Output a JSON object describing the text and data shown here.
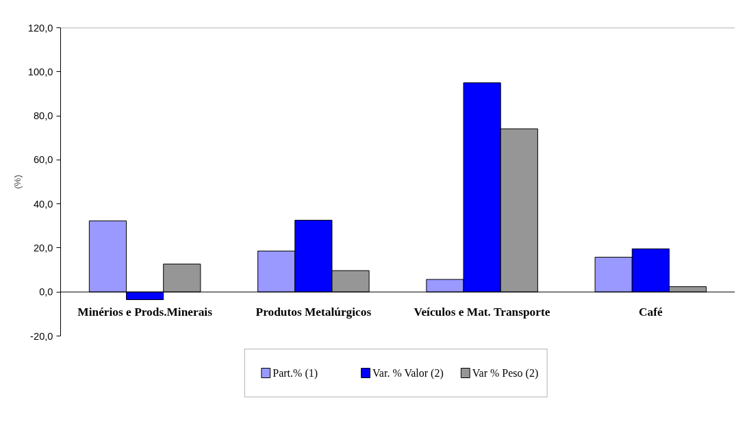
{
  "chart_data": {
    "type": "bar",
    "ylabel": "(%)",
    "categories": [
      "Minérios e Prods.Minerais",
      "Produtos Metalúrgicos",
      "Veículos e Mat. Transporte",
      "Café"
    ],
    "series": [
      {
        "name": "Part.% (1)",
        "color": "#9999ff",
        "values": [
          32.3,
          18.6,
          5.7,
          15.8
        ]
      },
      {
        "name": "Var. % Valor (2)",
        "color": "#0000ff",
        "values": [
          -3.5,
          32.6,
          95.0,
          19.6
        ]
      },
      {
        "name": "Var % Peso (2)",
        "color": "#969696",
        "values": [
          12.7,
          9.7,
          74.1,
          2.4
        ]
      }
    ],
    "ylim": [
      -20,
      120
    ],
    "yticks": [
      {
        "value": -20,
        "label": "-20,0"
      },
      {
        "value": 0,
        "label": "0,0"
      },
      {
        "value": 20,
        "label": "20,0"
      },
      {
        "value": 40,
        "label": "40,0"
      },
      {
        "value": 60,
        "label": "60,0"
      },
      {
        "value": 80,
        "label": "80,0"
      },
      {
        "value": 100,
        "label": "100,0"
      },
      {
        "value": 120,
        "label": "120,0"
      }
    ],
    "grid": false,
    "legend": "bottom"
  }
}
